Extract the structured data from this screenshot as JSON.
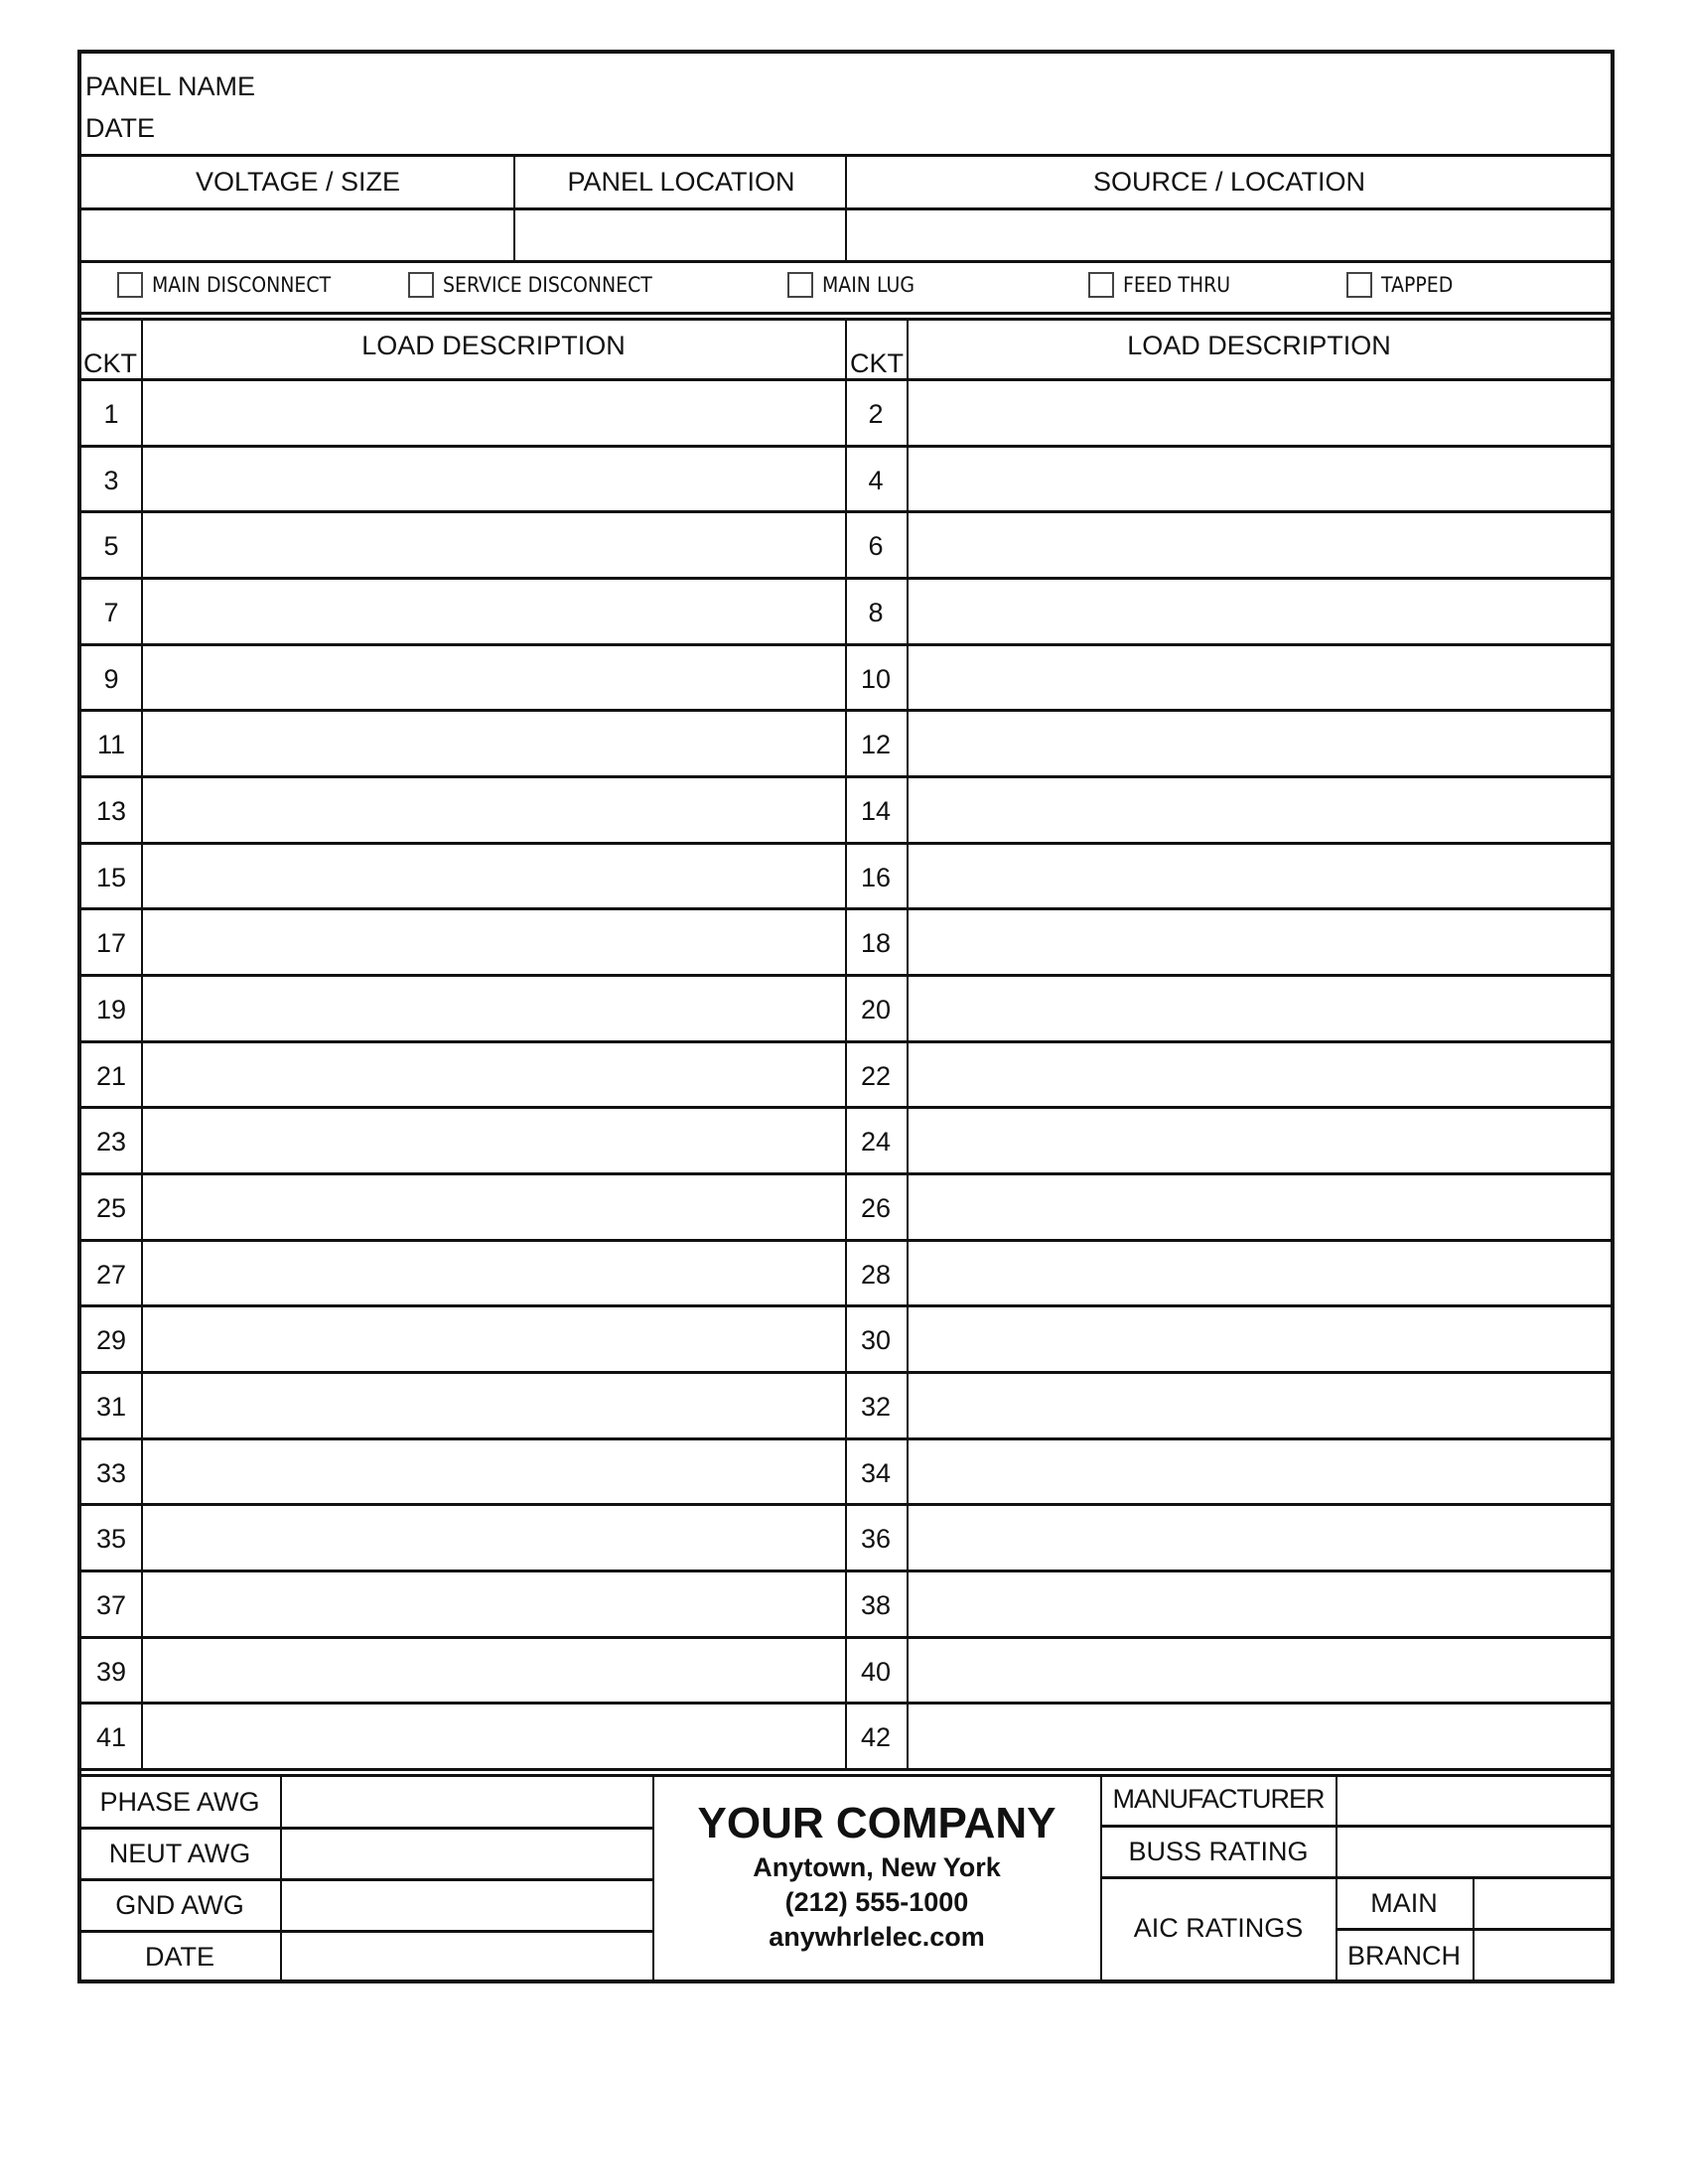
{
  "header": {
    "panel_name_label": "PANEL NAME",
    "date_label": "DATE"
  },
  "info_row": {
    "voltage_size": "VOLTAGE / SIZE",
    "panel_location": "PANEL LOCATION",
    "source_location": "SOURCE / LOCATION"
  },
  "options": [
    {
      "label": "MAIN DISCONNECT",
      "checked": false
    },
    {
      "label": "SERVICE DISCONNECT",
      "checked": false
    },
    {
      "label": "MAIN LUG",
      "checked": false
    },
    {
      "label": "FEED THRU",
      "checked": false
    },
    {
      "label": "TAPPED",
      "checked": false
    }
  ],
  "table": {
    "ckt_header": "CKT",
    "load_header": "LOAD DESCRIPTION",
    "left_circuits": [
      "1",
      "3",
      "5",
      "7",
      "9",
      "11",
      "13",
      "15",
      "17",
      "19",
      "21",
      "23",
      "25",
      "27",
      "29",
      "31",
      "33",
      "35",
      "37",
      "39",
      "41"
    ],
    "right_circuits": [
      "2",
      "4",
      "6",
      "8",
      "10",
      "12",
      "14",
      "16",
      "18",
      "20",
      "22",
      "24",
      "26",
      "28",
      "30",
      "32",
      "34",
      "36",
      "38",
      "40",
      "42"
    ]
  },
  "footer": {
    "left_labels": [
      "PHASE AWG",
      "NEUT AWG",
      "GND AWG",
      "DATE"
    ],
    "company": {
      "name": "YOUR COMPANY",
      "city": "Anytown, New York",
      "phone": "(212) 555-1000",
      "website": "anywhrlelec.com"
    },
    "manufacturer": "MANUFACTURER",
    "buss_rating": "BUSS RATING",
    "aic_ratings": "AIC RATINGS",
    "main": "MAIN",
    "branch": "BRANCH"
  }
}
